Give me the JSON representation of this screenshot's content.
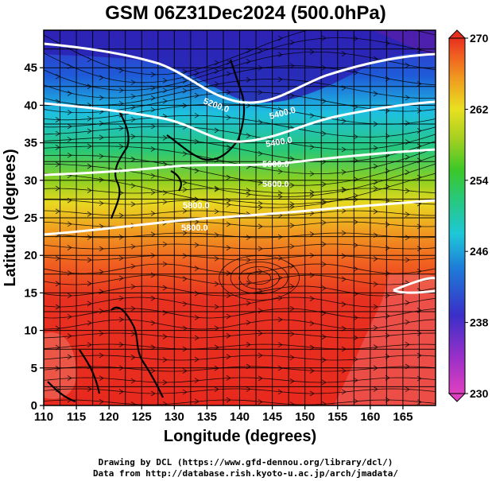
{
  "title": "GSM 06Z31Dec2024 (500.0hPa)",
  "xlabel": "Longitude (degrees)",
  "ylabel": "Latitude  (degrees)",
  "x_range": [
    110,
    170
  ],
  "y_range": [
    0,
    50
  ],
  "x_ticks": [
    "110",
    "115",
    "120",
    "125",
    "130",
    "135",
    "140",
    "145",
    "150",
    "155",
    "160",
    "165"
  ],
  "y_ticks": [
    "0",
    "5",
    "10",
    "15",
    "20",
    "25",
    "30",
    "35",
    "40",
    "45"
  ],
  "colorbar": {
    "ticks": [
      "270",
      "262",
      "254",
      "246",
      "238",
      "230"
    ],
    "min": 230,
    "max": 270,
    "colors": [
      "#e040c0",
      "#9b30c8",
      "#3a2fc8",
      "#1e6fd8",
      "#1ec8d8",
      "#28c878",
      "#3cc828",
      "#a8d020",
      "#e8e020",
      "#f0a020",
      "#f06020",
      "#e83020"
    ]
  },
  "contour_labels": [
    "5200.0",
    "5400.0",
    "5600.0",
    "5800.0",
    "5200.0",
    "5400.0",
    "5600.0",
    "5800.0"
  ],
  "credits": {
    "line1": "Drawing by DCL (https://www.gfd-dennou.org/library/dcl/)",
    "line2": "Data from http://database.rish.kyoto-u.ac.jp/arch/jmadata/"
  }
}
